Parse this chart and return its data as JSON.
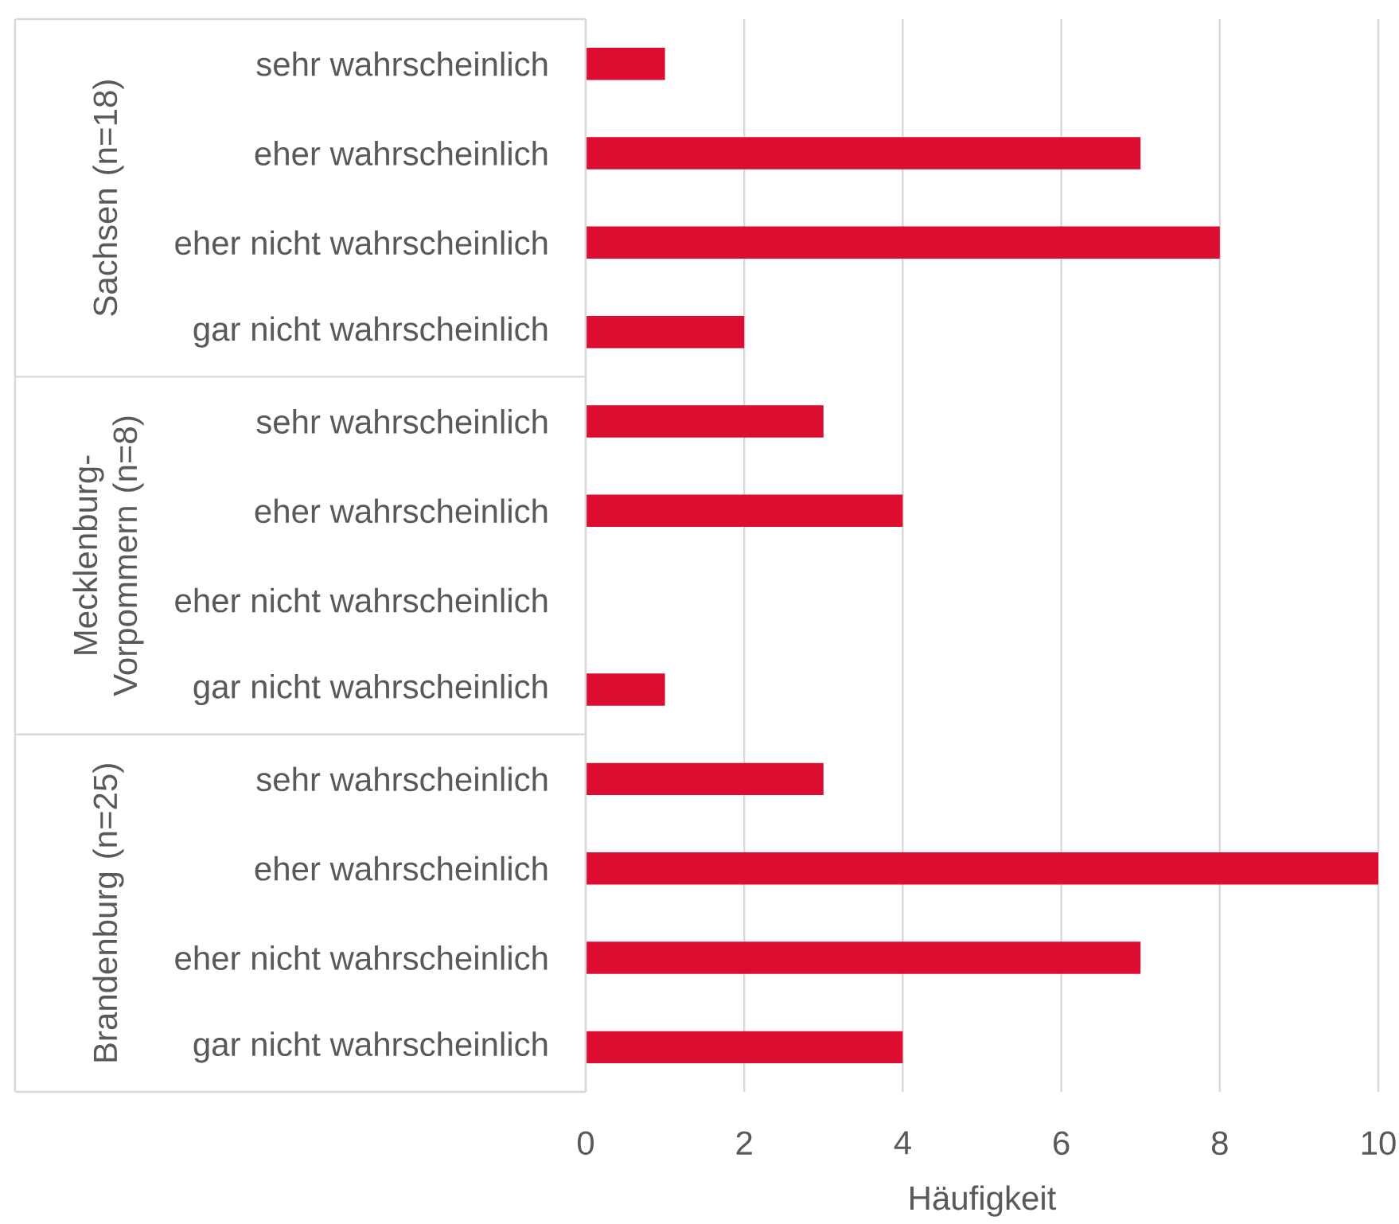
{
  "chart_data": {
    "type": "bar",
    "orientation": "horizontal",
    "xlabel": "Häufigkeit",
    "categories": [
      "sehr wahrscheinlich",
      "eher wahrscheinlich",
      "eher nicht wahrscheinlich",
      "gar nicht wahrscheinlich",
      "sehr wahrscheinlich",
      "eher wahrscheinlich",
      "eher nicht wahrscheinlich",
      "gar nicht wahrscheinlich",
      "sehr wahrscheinlich",
      "eher wahrscheinlich",
      "eher nicht wahrscheinlich",
      "gar nicht wahrscheinlich"
    ],
    "values": [
      1,
      7,
      8,
      2,
      3,
      4,
      0,
      1,
      3,
      10,
      7,
      4
    ],
    "color": "#dc0d30",
    "xlim": [
      0,
      10
    ],
    "xticks": [
      0,
      2,
      4,
      6,
      8,
      10
    ],
    "grid": "x",
    "annotations": [
      "Sachsen (n=18)",
      "Mecklenburg-Vorpommern (n=8)",
      "Brandenburg (n=25)"
    ]
  }
}
